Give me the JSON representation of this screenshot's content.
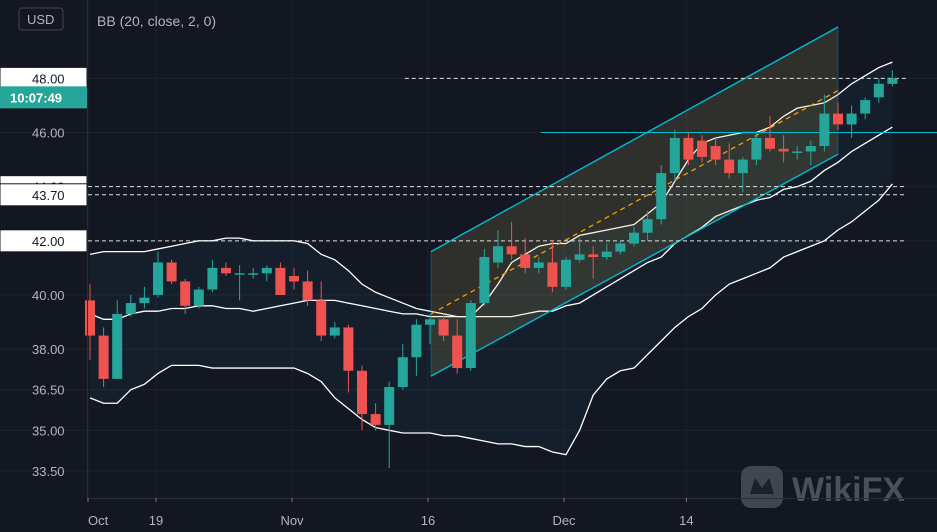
{
  "currency_badge": "USD",
  "indicator_label": "BB (20, close, 2, 0)",
  "time_tag": "10:07:49",
  "watermark": "WikiFX",
  "colors": {
    "background": "#131722",
    "up": "#26a69a",
    "down": "#ef5350",
    "band": "#ffffff",
    "channel": "#00bcd4",
    "midline": "#ff9800",
    "hline": "#00bcd4"
  },
  "chart_data": {
    "type": "candlestick",
    "ylim": [
      32.5,
      50.6
    ],
    "x_ticks": [
      "Oct",
      "19",
      "Nov",
      "16",
      "Dec",
      "14"
    ],
    "y_ticks": [
      "48.00",
      "46.00",
      "44.00",
      "43.70",
      "42.00",
      "40.00",
      "38.00",
      "36.50",
      "35.00",
      "33.50"
    ],
    "y_tick_values": [
      48.0,
      46.0,
      44.0,
      43.7,
      42.0,
      40.0,
      38.0,
      36.5,
      35.0,
      33.5
    ],
    "price_levels": [
      48.0,
      44.0,
      43.7,
      42.0
    ],
    "horizontal_line": 46.0,
    "candles": [
      {
        "date": "Oct 12",
        "o": 39.8,
        "h": 40.4,
        "l": 37.6,
        "c": 38.5
      },
      {
        "date": "Oct 13",
        "o": 38.5,
        "h": 38.8,
        "l": 36.6,
        "c": 36.9
      },
      {
        "date": "Oct 14",
        "o": 36.9,
        "h": 39.8,
        "l": 36.9,
        "c": 39.3
      },
      {
        "date": "Oct 15",
        "o": 39.3,
        "h": 40.0,
        "l": 39.2,
        "c": 39.7
      },
      {
        "date": "Oct 16",
        "o": 39.7,
        "h": 40.3,
        "l": 39.5,
        "c": 39.9
      },
      {
        "date": "Oct 19",
        "o": 40.0,
        "h": 41.6,
        "l": 39.9,
        "c": 41.2
      },
      {
        "date": "Oct 20",
        "o": 41.2,
        "h": 41.3,
        "l": 40.4,
        "c": 40.5
      },
      {
        "date": "Oct 21",
        "o": 40.5,
        "h": 40.6,
        "l": 39.3,
        "c": 39.6
      },
      {
        "date": "Oct 22",
        "o": 39.6,
        "h": 40.3,
        "l": 39.5,
        "c": 40.2
      },
      {
        "date": "Oct 23",
        "o": 40.2,
        "h": 41.3,
        "l": 40.1,
        "c": 41.0
      },
      {
        "date": "Oct 26",
        "o": 41.0,
        "h": 41.2,
        "l": 40.7,
        "c": 40.8
      },
      {
        "date": "Oct 27",
        "o": 40.8,
        "h": 41.1,
        "l": 39.8,
        "c": 40.8
      },
      {
        "date": "Oct 28",
        "o": 40.8,
        "h": 41.0,
        "l": 40.6,
        "c": 40.8
      },
      {
        "date": "Oct 29",
        "o": 40.8,
        "h": 41.1,
        "l": 40.5,
        "c": 41.0
      },
      {
        "date": "Oct 30",
        "o": 41.0,
        "h": 41.2,
        "l": 40.0,
        "c": 40.0
      },
      {
        "date": "Nov 02",
        "o": 40.7,
        "h": 41.0,
        "l": 40.2,
        "c": 40.5
      },
      {
        "date": "Nov 03",
        "o": 40.5,
        "h": 40.9,
        "l": 39.6,
        "c": 39.8
      },
      {
        "date": "Nov 04",
        "o": 39.8,
        "h": 40.5,
        "l": 38.3,
        "c": 38.5
      },
      {
        "date": "Nov 05",
        "o": 38.5,
        "h": 39.0,
        "l": 38.4,
        "c": 38.8
      },
      {
        "date": "Nov 06",
        "o": 38.8,
        "h": 38.9,
        "l": 36.4,
        "c": 37.2
      },
      {
        "date": "Nov 09",
        "o": 37.2,
        "h": 37.4,
        "l": 35.0,
        "c": 35.6
      },
      {
        "date": "Nov 10",
        "o": 35.6,
        "h": 36.0,
        "l": 35.0,
        "c": 35.2
      },
      {
        "date": "Nov 11",
        "o": 35.2,
        "h": 36.8,
        "l": 33.6,
        "c": 36.6
      },
      {
        "date": "Nov 12",
        "o": 36.6,
        "h": 38.2,
        "l": 36.5,
        "c": 37.7
      },
      {
        "date": "Nov 13",
        "o": 37.7,
        "h": 39.1,
        "l": 37.0,
        "c": 38.9
      },
      {
        "date": "Nov 16",
        "o": 38.9,
        "h": 39.3,
        "l": 38.2,
        "c": 39.1
      },
      {
        "date": "Nov 17",
        "o": 39.1,
        "h": 39.3,
        "l": 38.3,
        "c": 38.5
      },
      {
        "date": "Nov 18",
        "o": 38.5,
        "h": 39.1,
        "l": 37.1,
        "c": 37.3
      },
      {
        "date": "Nov 19",
        "o": 37.3,
        "h": 39.8,
        "l": 37.2,
        "c": 39.7
      },
      {
        "date": "Nov 20",
        "o": 39.7,
        "h": 41.7,
        "l": 39.6,
        "c": 41.4
      },
      {
        "date": "Nov 23",
        "o": 41.2,
        "h": 42.4,
        "l": 41.0,
        "c": 41.8
      },
      {
        "date": "Nov 24",
        "o": 41.8,
        "h": 42.7,
        "l": 41.3,
        "c": 41.5
      },
      {
        "date": "Nov 25",
        "o": 41.5,
        "h": 42.1,
        "l": 40.8,
        "c": 41.0
      },
      {
        "date": "Nov 27",
        "o": 41.0,
        "h": 41.4,
        "l": 40.8,
        "c": 41.2
      },
      {
        "date": "Nov 30",
        "o": 41.2,
        "h": 42.0,
        "l": 40.1,
        "c": 40.3
      },
      {
        "date": "Dec 01",
        "o": 40.3,
        "h": 41.4,
        "l": 40.2,
        "c": 41.3
      },
      {
        "date": "Dec 02",
        "o": 41.3,
        "h": 42.1,
        "l": 41.2,
        "c": 41.5
      },
      {
        "date": "Dec 03",
        "o": 41.5,
        "h": 41.8,
        "l": 40.6,
        "c": 41.4
      },
      {
        "date": "Dec 04",
        "o": 41.4,
        "h": 41.9,
        "l": 41.3,
        "c": 41.6
      },
      {
        "date": "Dec 07",
        "o": 41.6,
        "h": 42.0,
        "l": 41.5,
        "c": 41.9
      },
      {
        "date": "Dec 08",
        "o": 41.9,
        "h": 42.5,
        "l": 41.8,
        "c": 42.3
      },
      {
        "date": "Dec 09",
        "o": 42.3,
        "h": 43.1,
        "l": 42.0,
        "c": 42.8
      },
      {
        "date": "Dec 10",
        "o": 42.8,
        "h": 44.8,
        "l": 42.6,
        "c": 44.5
      },
      {
        "date": "Dec 11",
        "o": 44.5,
        "h": 46.1,
        "l": 44.2,
        "c": 45.8
      },
      {
        "date": "Dec 14",
        "o": 45.8,
        "h": 46.0,
        "l": 44.8,
        "c": 45.0
      },
      {
        "date": "Dec 15",
        "o": 45.7,
        "h": 45.9,
        "l": 44.9,
        "c": 45.1
      },
      {
        "date": "Dec 16",
        "o": 45.5,
        "h": 45.8,
        "l": 44.8,
        "c": 45.0
      },
      {
        "date": "Dec 17",
        "o": 45.0,
        "h": 45.6,
        "l": 44.3,
        "c": 44.5
      },
      {
        "date": "Dec 18",
        "o": 44.5,
        "h": 45.1,
        "l": 43.8,
        "c": 45.0
      },
      {
        "date": "Dec 21",
        "o": 45.0,
        "h": 46.0,
        "l": 44.8,
        "c": 45.8
      },
      {
        "date": "Dec 22",
        "o": 45.8,
        "h": 46.6,
        "l": 45.3,
        "c": 45.4
      },
      {
        "date": "Dec 23",
        "o": 45.4,
        "h": 45.9,
        "l": 44.9,
        "c": 45.3
      },
      {
        "date": "Dec 24",
        "o": 45.3,
        "h": 45.5,
        "l": 45.0,
        "c": 45.3
      },
      {
        "date": "Dec 28",
        "o": 45.3,
        "h": 45.7,
        "l": 44.8,
        "c": 45.5
      },
      {
        "date": "Dec 29",
        "o": 45.5,
        "h": 47.4,
        "l": 45.3,
        "c": 46.7
      },
      {
        "date": "Dec 30",
        "o": 46.7,
        "h": 47.1,
        "l": 46.1,
        "c": 46.3
      },
      {
        "date": "Dec 31",
        "o": 46.3,
        "h": 47.0,
        "l": 45.8,
        "c": 46.7
      },
      {
        "date": "Jan 04",
        "o": 46.7,
        "h": 47.3,
        "l": 46.5,
        "c": 47.2
      },
      {
        "date": "Jan 05",
        "o": 47.3,
        "h": 48.0,
        "l": 47.1,
        "c": 47.8
      },
      {
        "date": "Jan 06",
        "o": 47.8,
        "h": 48.3,
        "l": 47.7,
        "c": 48.0
      }
    ],
    "bollinger": {
      "upper": [
        41.5,
        41.6,
        41.6,
        41.6,
        41.6,
        41.7,
        41.8,
        41.9,
        42.0,
        42.0,
        42.1,
        42.1,
        42.0,
        42.0,
        42.0,
        42.0,
        41.9,
        41.5,
        41.3,
        40.9,
        40.4,
        40.1,
        39.9,
        39.7,
        39.5,
        39.4,
        39.3,
        39.2,
        39.2,
        39.7,
        40.4,
        41.2,
        41.5,
        41.8,
        41.9,
        41.9,
        42.2,
        42.3,
        42.4,
        42.5,
        42.6,
        43.0,
        43.4,
        44.2,
        45.0,
        45.6,
        45.8,
        45.9,
        46.0,
        46.0,
        46.2,
        46.6,
        46.9,
        47.0,
        47.1,
        47.4,
        47.8,
        48.1,
        48.4,
        48.6
      ],
      "middle": [
        39.3,
        39.1,
        39.1,
        39.3,
        39.4,
        39.4,
        39.5,
        39.5,
        39.6,
        39.6,
        39.5,
        39.5,
        39.4,
        39.5,
        39.6,
        39.7,
        39.8,
        39.8,
        39.8,
        39.7,
        39.6,
        39.5,
        39.4,
        39.3,
        39.3,
        39.2,
        39.2,
        39.2,
        39.2,
        39.2,
        39.2,
        39.2,
        39.3,
        39.4,
        39.4,
        39.6,
        39.7,
        40.0,
        40.3,
        40.6,
        40.9,
        41.2,
        41.4,
        41.9,
        42.2,
        42.5,
        42.9,
        43.1,
        43.3,
        43.5,
        43.6,
        43.9,
        44.0,
        44.2,
        44.6,
        44.9,
        45.3,
        45.6,
        45.9,
        46.2
      ],
      "lower": [
        36.2,
        36.0,
        36.0,
        36.5,
        36.7,
        37.1,
        37.4,
        37.4,
        37.4,
        37.3,
        37.3,
        37.3,
        37.3,
        37.3,
        37.3,
        37.3,
        37.1,
        36.8,
        36.2,
        35.8,
        35.4,
        35.1,
        35.0,
        34.9,
        34.9,
        34.9,
        34.8,
        34.8,
        34.7,
        34.6,
        34.5,
        34.5,
        34.4,
        34.4,
        34.2,
        34.1,
        35.0,
        36.3,
        36.9,
        37.2,
        37.3,
        37.8,
        38.3,
        38.8,
        39.2,
        39.5,
        40.0,
        40.4,
        40.6,
        40.8,
        41.0,
        41.4,
        41.6,
        41.8,
        42.0,
        42.4,
        42.7,
        43.1,
        43.5,
        44.1
      ]
    }
  }
}
